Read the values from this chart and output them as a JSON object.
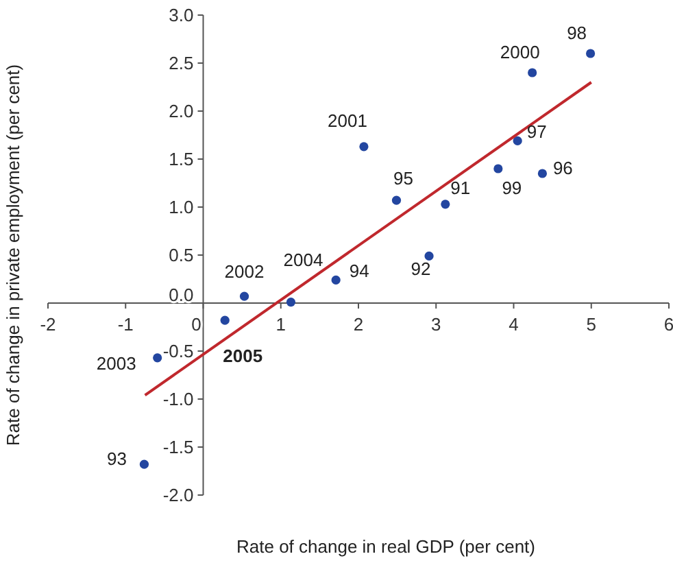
{
  "chart_data": {
    "type": "scatter",
    "xlabel": "Rate of change in real GDP (per cent)",
    "ylabel": "Rate of change in private employment (per cent)",
    "xlim": [
      -2,
      6
    ],
    "ylim": [
      -2,
      3
    ],
    "xticks": [
      -2,
      -1,
      0,
      1,
      2,
      3,
      4,
      5,
      6
    ],
    "yticks": [
      {
        "value": -2,
        "label": "-2.0"
      },
      {
        "value": -1.5,
        "label": "-1.5"
      },
      {
        "value": -1,
        "label": "-1.0"
      },
      {
        "value": -0.5,
        "label": "-0.5"
      },
      {
        "value": 0,
        "label": "0.0"
      },
      {
        "value": 0.5,
        "label": "0.5"
      },
      {
        "value": 1,
        "label": "1.0"
      },
      {
        "value": 1.5,
        "label": "1.5"
      },
      {
        "value": 2,
        "label": "2.0"
      },
      {
        "value": 2.5,
        "label": "2.5"
      },
      {
        "value": 3,
        "label": "3.0"
      }
    ],
    "marker": "circle",
    "series": [
      {
        "color": "#2346a0",
        "x": [
          4.99,
          4.24,
          2.07,
          4.05,
          3.8,
          4.37,
          2.49,
          3.12,
          2.91,
          1.71,
          0.53,
          1.13,
          0.28,
          -0.59,
          -0.76
        ],
        "values": [
          2.6,
          2.4,
          1.63,
          1.69,
          1.4,
          1.35,
          1.07,
          1.03,
          0.49,
          0.24,
          0.07,
          0.01,
          -0.18,
          -0.57,
          -1.68
        ]
      },
      {
        "type": "line",
        "marker": "none",
        "color": "#c0282d",
        "x": [
          -0.75,
          5.0
        ],
        "values": [
          -0.96,
          2.3
        ]
      }
    ],
    "annotations": [
      {
        "text": "98",
        "x": 4.99,
        "y": 2.6
      },
      {
        "text": "2000",
        "x": 4.24,
        "y": 2.4
      },
      {
        "text": "2001",
        "x": 2.07,
        "y": 1.63
      },
      {
        "text": "97",
        "x": 4.05,
        "y": 1.69
      },
      {
        "text": "99",
        "x": 3.8,
        "y": 1.4
      },
      {
        "text": "96",
        "x": 4.37,
        "y": 1.35
      },
      {
        "text": "95",
        "x": 2.49,
        "y": 1.07
      },
      {
        "text": "91",
        "x": 3.12,
        "y": 1.03
      },
      {
        "text": "92",
        "x": 2.91,
        "y": 0.49
      },
      {
        "text": "94",
        "x": 1.71,
        "y": 0.24
      },
      {
        "text": "2002",
        "x": 0.53,
        "y": 0.07
      },
      {
        "text": "2004",
        "x": 1.13,
        "y": 0.01
      },
      {
        "text": "2005",
        "x": 0.28,
        "y": -0.18
      },
      {
        "text": "2003",
        "x": -0.59,
        "y": -0.57
      },
      {
        "text": "93",
        "x": -0.76,
        "y": -1.68
      }
    ]
  }
}
